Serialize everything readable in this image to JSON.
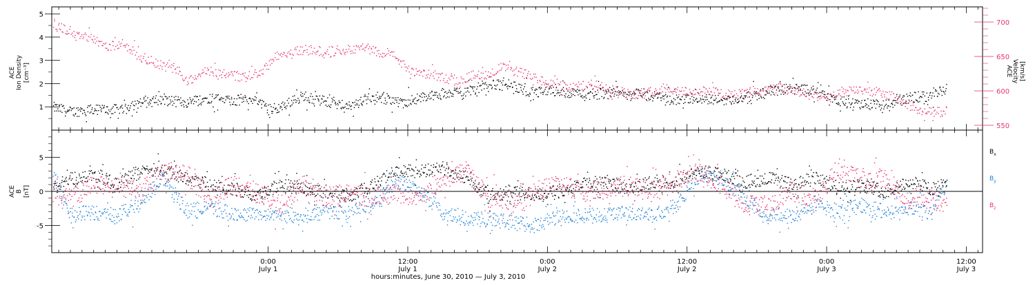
{
  "colors": {
    "black": "#000000",
    "density": "#000000",
    "velocity": "#e8336b",
    "bx": "#000000",
    "by": "#1a7fd4",
    "bz": "#e8336b"
  },
  "chart_data": [
    {
      "type": "scatter",
      "panel": "top",
      "ylabel_left": [
        "ACE",
        "Ion Density",
        "[cm⁻³]"
      ],
      "ylabel_right": [
        "ACE",
        "Velocity",
        "[km/s]"
      ],
      "left_axis": {
        "ylim": [
          0.0,
          5.3
        ],
        "ticks": [
          1,
          2,
          3,
          4,
          5
        ]
      },
      "right_axis": {
        "ylim": [
          543,
          722
        ],
        "ticks": [
          550,
          600,
          650,
          700
        ]
      },
      "xlim_hours": [
        -18.6,
        61.4
      ],
      "series": [
        {
          "axis": "left",
          "color": "#000000",
          "x_hours": [
            -18.5,
            -17,
            -15,
            -13,
            -11,
            -9,
            -7,
            -5,
            -3,
            -1,
            0,
            1,
            3,
            5,
            7,
            9,
            11,
            13,
            15,
            17,
            19,
            21,
            23,
            25,
            27,
            29,
            31,
            33,
            35,
            37,
            39,
            41,
            43,
            45,
            47,
            49,
            51,
            53,
            55,
            57,
            58.3
          ],
          "values": [
            1.0,
            0.8,
            0.9,
            0.9,
            1.2,
            1.3,
            1.2,
            1.4,
            1.3,
            1.3,
            0.9,
            1.0,
            1.5,
            1.2,
            1.0,
            1.5,
            1.2,
            1.4,
            1.6,
            1.7,
            2.0,
            1.9,
            1.6,
            1.7,
            1.5,
            1.6,
            1.6,
            1.5,
            1.3,
            1.4,
            1.3,
            1.4,
            1.7,
            1.8,
            1.7,
            1.3,
            1.1,
            1.1,
            1.4,
            1.5,
            1.8
          ]
        },
        {
          "axis": "right",
          "color": "#e8336b",
          "x_hours": [
            -18.5,
            -17.5,
            -16.5,
            -15.5,
            -14,
            -12.5,
            -11,
            -9.5,
            -8,
            -7,
            -6,
            -5,
            -3.5,
            -2,
            -0.5,
            1,
            2,
            3,
            4,
            5,
            6,
            7,
            8,
            9,
            10,
            11,
            12,
            13,
            14,
            15,
            16,
            17,
            18,
            19,
            20,
            21,
            22,
            23,
            24,
            26,
            28,
            30,
            32,
            34,
            36,
            38,
            40,
            42,
            44,
            46,
            48,
            50,
            52,
            54,
            56,
            58.3
          ],
          "values": [
            695,
            690,
            680,
            680,
            665,
            670,
            650,
            640,
            630,
            615,
            625,
            630,
            625,
            620,
            630,
            655,
            655,
            660,
            660,
            655,
            660,
            660,
            665,
            660,
            655,
            650,
            630,
            625,
            625,
            620,
            615,
            620,
            625,
            625,
            635,
            630,
            625,
            620,
            610,
            605,
            610,
            600,
            595,
            605,
            600,
            600,
            595,
            600,
            605,
            595,
            590,
            600,
            600,
            590,
            570,
            570
          ]
        }
      ],
      "refline": {
        "axis": "left",
        "value": 0
      }
    },
    {
      "type": "scatter",
      "panel": "bottom",
      "ylabel_left": [
        "ACE",
        "B",
        "[nT]"
      ],
      "ylim": [
        -9,
        9
      ],
      "ticks": [
        -5,
        0,
        5
      ],
      "xlim_hours": [
        -18.6,
        61.4
      ],
      "legend": [
        {
          "label": "B",
          "sub": "x",
          "color": "#000000"
        },
        {
          "label": "B",
          "sub": "y",
          "color": "#1a7fd4"
        },
        {
          "label": "B",
          "sub": "z",
          "color": "#e8336b"
        }
      ],
      "series": [
        {
          "name": "Bx",
          "color": "#000000",
          "x_hours": [
            -18.5,
            -17,
            -15,
            -13,
            -11,
            -9,
            -7,
            -5,
            -3,
            -1,
            1,
            3,
            5,
            7,
            9,
            11,
            13,
            15,
            17,
            19,
            21,
            23,
            25,
            27,
            29,
            31,
            33,
            35,
            37,
            39,
            41,
            43,
            45,
            47,
            49,
            51,
            53,
            55,
            57,
            58.3
          ],
          "values": [
            0.5,
            2,
            2.5,
            1,
            3,
            3.5,
            2,
            1,
            0.5,
            -0.5,
            1,
            0.5,
            0,
            -0.5,
            1,
            3,
            3,
            3.5,
            2,
            -0.5,
            0,
            -0.5,
            0,
            1,
            1.5,
            0.5,
            1.5,
            1.5,
            3,
            2.5,
            1.5,
            2,
            1,
            2,
            0.5,
            1,
            0,
            1.5,
            0.5,
            1
          ]
        },
        {
          "name": "By",
          "color": "#1a7fd4",
          "x_hours": [
            -18.5,
            -17,
            -15,
            -13,
            -11,
            -9,
            -7,
            -5,
            -3,
            -1,
            1,
            3,
            5,
            7,
            9,
            11,
            13,
            15,
            17,
            19,
            21,
            23,
            25,
            27,
            29,
            31,
            33,
            35,
            37,
            39,
            41,
            43,
            45,
            47,
            49,
            51,
            53,
            55,
            57,
            58.3
          ],
          "values": [
            2.5,
            -3.5,
            -3,
            -3.5,
            -1.5,
            2,
            -3,
            -2,
            -3.5,
            -3,
            -3.5,
            -3.5,
            -3,
            -3,
            -2,
            1.5,
            0,
            -3,
            -4,
            -4,
            -4.5,
            -5,
            -3.5,
            -3.5,
            -3.5,
            -3,
            -3.5,
            -2,
            2.5,
            2,
            -1,
            -3.5,
            -3.5,
            -2,
            -3,
            -2,
            -3,
            -2.5,
            -3,
            1.5
          ]
        },
        {
          "name": "Bz",
          "color": "#e8336b",
          "x_hours": [
            -18.5,
            -17,
            -15,
            -13,
            -11,
            -9,
            -7,
            -5,
            -3,
            -1,
            1,
            3,
            5,
            7,
            9,
            11,
            13,
            15,
            17,
            19,
            21,
            23,
            25,
            27,
            29,
            31,
            33,
            35,
            37,
            39,
            41,
            43,
            45,
            47,
            49,
            51,
            53,
            55,
            57,
            58.3
          ],
          "values": [
            0,
            -1,
            1,
            0.5,
            0,
            3,
            2.5,
            -1,
            1,
            0,
            -2,
            1,
            -1,
            0,
            -1,
            0,
            -1,
            2,
            3,
            -1,
            -2,
            0,
            1,
            0,
            0.5,
            1,
            0,
            1.5,
            3,
            1,
            -2,
            -2,
            0,
            -1,
            3.5,
            2,
            2,
            -1,
            -1,
            -1.5
          ]
        }
      ],
      "refline": {
        "value": 0
      }
    }
  ],
  "x_axis": {
    "ticks": [
      {
        "hours": 0,
        "time": "0:00",
        "day": "July 1"
      },
      {
        "hours": 12,
        "time": "12:00",
        "day": "July 1"
      },
      {
        "hours": 24,
        "time": "0:00",
        "day": "July 2"
      },
      {
        "hours": 36,
        "time": "12:00",
        "day": "July 2"
      },
      {
        "hours": 48,
        "time": "0:00",
        "day": "July 3"
      },
      {
        "hours": 60,
        "time": "12:00",
        "day": "July 3"
      }
    ],
    "minor_ticks_every_hours": 1,
    "title": "hours:minutes, June 30, 2010 — July  3, 2010"
  }
}
